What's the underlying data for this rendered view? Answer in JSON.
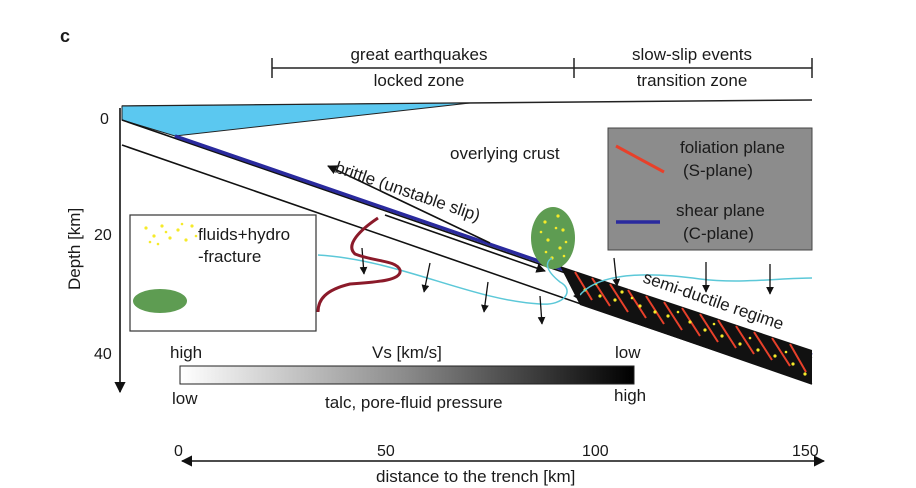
{
  "panel_label": "c",
  "top_zones": [
    {
      "line1": "great earthquakes",
      "line2": "locked zone"
    },
    {
      "line1": "slow-slip events",
      "line2": "transition zone"
    }
  ],
  "depth_axis": {
    "label": "Depth [km]",
    "ticks": [
      "0",
      "20",
      "40"
    ]
  },
  "distance_axis": {
    "label": "distance to the trench [km]",
    "ticks": [
      "0",
      "50",
      "100",
      "150"
    ]
  },
  "annotations": {
    "overlying_crust": "overlying crust",
    "brittle": "brittle (unstable slip)",
    "semi_ductile": "semi-ductile regime"
  },
  "legend_left": {
    "fluids_line1": "fluids+hydro",
    "fluids_line2": "-fracture"
  },
  "legend_right": {
    "foliation_line1": "foliation plane",
    "foliation_line2": "(S-plane)",
    "shear_line1": "shear plane",
    "shear_line2": "(C-plane)"
  },
  "colorbar": {
    "vs_high": "high",
    "vs_label": "Vs [km/s]",
    "vs_low": "low",
    "bottom_low": "low",
    "bottom_label": "talc, pore-fluid pressure",
    "bottom_high": "high"
  },
  "colors": {
    "water": "#5bc8f0",
    "shear_plane": "#2a2a9e",
    "foliation": "#e8402a",
    "fluid_dots": "#f5ea2a",
    "green_blob": "#5e9c52",
    "velocity_curve": "#8b1a2a",
    "cyan_lines": "#5cc8d8",
    "legend_box": "#8c8c8c"
  }
}
